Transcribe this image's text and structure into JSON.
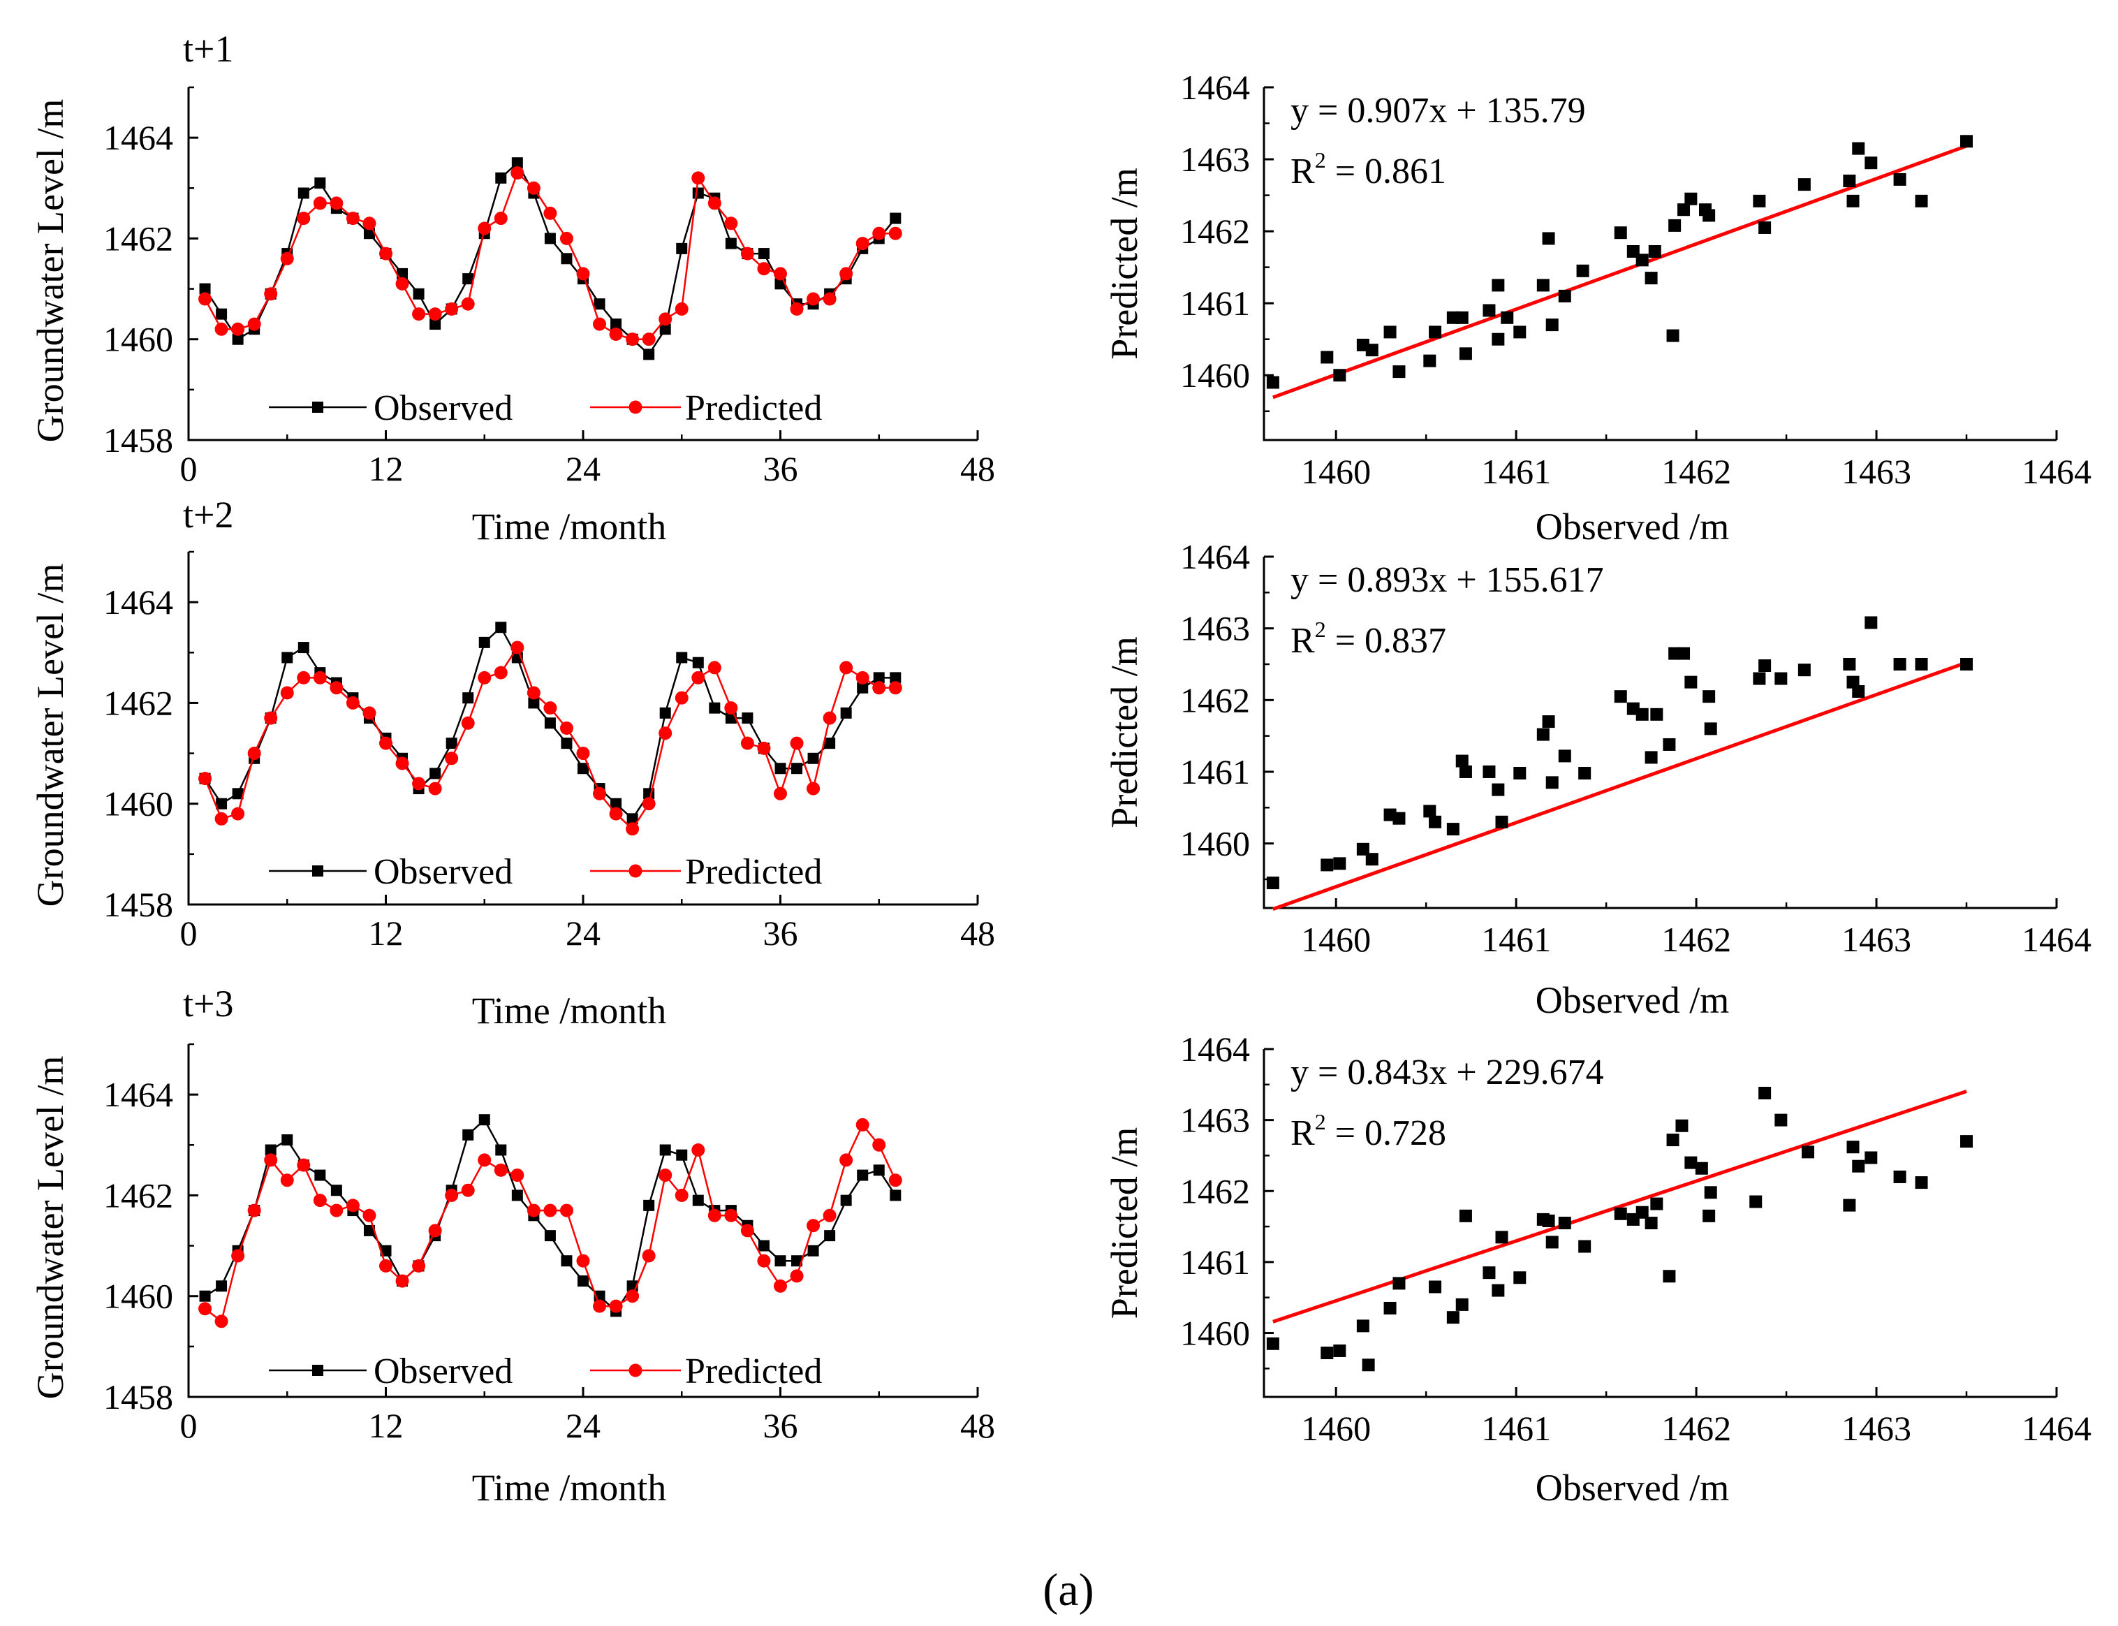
{
  "figure_caption": "(a)",
  "colors": {
    "observed": "#000000",
    "predicted": "#ff0000",
    "fit_line": "#ff0000"
  },
  "chart_data": [
    {
      "type": "line",
      "panel": "t+1",
      "xlabel": "Time /month",
      "ylabel": "Groundwater Level /m",
      "xlim": [
        0,
        48
      ],
      "ylim": [
        1458,
        1465
      ],
      "xticks": [
        "0",
        "12",
        "24",
        "36",
        "48"
      ],
      "yticks": [
        "1458",
        "1460",
        "1462",
        "1464"
      ],
      "x": [
        1,
        2,
        3,
        4,
        5,
        6,
        7,
        8,
        9,
        10,
        11,
        12,
        13,
        14,
        15,
        16,
        17,
        18,
        19,
        20,
        21,
        22,
        23,
        24,
        25,
        26,
        27,
        28,
        29,
        30,
        31,
        32,
        33,
        34,
        35,
        36,
        37,
        38,
        39,
        40,
        41,
        42,
        43
      ],
      "series": [
        {
          "name": "Observed",
          "marker": "square",
          "values": [
            1461.0,
            1460.5,
            1460.0,
            1460.2,
            1460.9,
            1461.7,
            1462.9,
            1463.1,
            1462.6,
            1462.4,
            1462.1,
            1461.7,
            1461.3,
            1460.9,
            1460.3,
            1460.6,
            1461.2,
            1462.1,
            1463.2,
            1463.5,
            1462.9,
            1462.0,
            1461.6,
            1461.2,
            1460.7,
            1460.3,
            1460.0,
            1459.7,
            1460.2,
            1461.8,
            1462.9,
            1462.8,
            1461.9,
            1461.7,
            1461.7,
            1461.1,
            1460.7,
            1460.7,
            1460.9,
            1461.2,
            1461.8,
            1462.0,
            1462.4
          ]
        },
        {
          "name": "Predicted",
          "marker": "circle",
          "values": [
            1460.8,
            1460.2,
            1460.2,
            1460.3,
            1460.9,
            1461.6,
            1462.4,
            1462.7,
            1462.7,
            1462.4,
            1462.3,
            1461.7,
            1461.1,
            1460.5,
            1460.5,
            1460.6,
            1460.7,
            1462.2,
            1462.4,
            1463.3,
            1463.0,
            1462.5,
            1462.0,
            1461.3,
            1460.3,
            1460.1,
            1460.0,
            1460.0,
            1460.4,
            1460.6,
            1463.2,
            1462.7,
            1462.3,
            1461.7,
            1461.4,
            1461.3,
            1460.6,
            1460.8,
            1460.8,
            1461.3,
            1461.9,
            1462.1,
            1462.1
          ]
        }
      ]
    },
    {
      "type": "scatter",
      "panel": "t+1",
      "xlabel": "Observed /m",
      "ylabel": "Predicted /m",
      "xlim": [
        1459.6,
        1464
      ],
      "ylim": [
        1459.1,
        1464
      ],
      "xticks": [
        "1460",
        "1461",
        "1462",
        "1463",
        "1464"
      ],
      "yticks": [
        "1460",
        "1461",
        "1462",
        "1463",
        "1464"
      ],
      "equation": "y = 0.907x + 135.79",
      "r2_label": "R",
      "r2_exp": "2",
      "r2_value": " = 0.861",
      "fit": {
        "slope": 0.907,
        "intercept": 135.79,
        "x_range": [
          1459.65,
          1463.5
        ]
      },
      "points": [
        [
          1459.65,
          1459.9
        ],
        [
          1459.95,
          1460.25
        ],
        [
          1460.02,
          1460.0
        ],
        [
          1460.15,
          1460.42
        ],
        [
          1460.2,
          1460.35
        ],
        [
          1460.3,
          1460.6
        ],
        [
          1460.35,
          1460.05
        ],
        [
          1460.52,
          1460.2
        ],
        [
          1460.55,
          1460.6
        ],
        [
          1460.65,
          1460.8
        ],
        [
          1460.7,
          1460.8
        ],
        [
          1460.72,
          1460.3
        ],
        [
          1460.85,
          1460.9
        ],
        [
          1460.9,
          1460.5
        ],
        [
          1460.9,
          1461.25
        ],
        [
          1460.95,
          1460.8
        ],
        [
          1461.02,
          1460.6
        ],
        [
          1461.15,
          1461.25
        ],
        [
          1461.18,
          1461.9
        ],
        [
          1461.2,
          1460.7
        ],
        [
          1461.27,
          1461.1
        ],
        [
          1461.37,
          1461.45
        ],
        [
          1461.58,
          1461.98
        ],
        [
          1461.65,
          1461.72
        ],
        [
          1461.7,
          1461.6
        ],
        [
          1461.75,
          1461.35
        ],
        [
          1461.77,
          1461.72
        ],
        [
          1461.87,
          1460.55
        ],
        [
          1461.88,
          1462.08
        ],
        [
          1461.93,
          1462.3
        ],
        [
          1461.97,
          1462.45
        ],
        [
          1462.05,
          1462.3
        ],
        [
          1462.07,
          1462.22
        ],
        [
          1462.35,
          1462.42
        ],
        [
          1462.38,
          1462.05
        ],
        [
          1462.6,
          1462.65
        ],
        [
          1462.85,
          1462.7
        ],
        [
          1462.87,
          1462.42
        ],
        [
          1462.9,
          1463.15
        ],
        [
          1462.97,
          1462.95
        ],
        [
          1463.13,
          1462.72
        ],
        [
          1463.25,
          1462.42
        ],
        [
          1463.5,
          1463.25
        ]
      ]
    },
    {
      "type": "line",
      "panel": "t+2",
      "xlabel": "Time /month",
      "ylabel": "Groundwater Level /m",
      "xlim": [
        0,
        48
      ],
      "ylim": [
        1458,
        1465
      ],
      "xticks": [
        "0",
        "12",
        "24",
        "36",
        "48"
      ],
      "yticks": [
        "1458",
        "1460",
        "1462",
        "1464"
      ],
      "x": [
        1,
        2,
        3,
        4,
        5,
        6,
        7,
        8,
        9,
        10,
        11,
        12,
        13,
        14,
        15,
        16,
        17,
        18,
        19,
        20,
        21,
        22,
        23,
        24,
        25,
        26,
        27,
        28,
        29,
        30,
        31,
        32,
        33,
        34,
        35,
        36,
        37,
        38,
        39,
        40,
        41,
        42,
        43
      ],
      "series": [
        {
          "name": "Observed",
          "marker": "square",
          "values": [
            1460.5,
            1460.0,
            1460.2,
            1460.9,
            1461.7,
            1462.9,
            1463.1,
            1462.6,
            1462.4,
            1462.1,
            1461.7,
            1461.3,
            1460.9,
            1460.3,
            1460.6,
            1461.2,
            1462.1,
            1463.2,
            1463.5,
            1462.9,
            1462.0,
            1461.6,
            1461.2,
            1460.7,
            1460.3,
            1460.0,
            1459.7,
            1460.2,
            1461.8,
            1462.9,
            1462.8,
            1461.9,
            1461.7,
            1461.7,
            1461.1,
            1460.7,
            1460.7,
            1460.9,
            1461.2,
            1461.8,
            1462.3,
            1462.5,
            1462.5
          ]
        },
        {
          "name": "Predicted",
          "marker": "circle",
          "values": [
            1460.5,
            1459.7,
            1459.8,
            1461.0,
            1461.7,
            1462.2,
            1462.5,
            1462.5,
            1462.3,
            1462.0,
            1461.8,
            1461.2,
            1460.8,
            1460.4,
            1460.3,
            1460.9,
            1461.6,
            1462.5,
            1462.6,
            1463.1,
            1462.2,
            1461.9,
            1461.5,
            1461.0,
            1460.2,
            1459.8,
            1459.5,
            1460.0,
            1461.4,
            1462.1,
            1462.5,
            1462.7,
            1461.9,
            1461.2,
            1461.1,
            1460.2,
            1461.2,
            1460.3,
            1461.7,
            1462.7,
            1462.5,
            1462.3,
            1462.3
          ]
        }
      ]
    },
    {
      "type": "scatter",
      "panel": "t+2",
      "xlabel": "Observed /m",
      "ylabel": "Predicted /m",
      "xlim": [
        1459.6,
        1464
      ],
      "ylim": [
        1459.1,
        1464
      ],
      "xticks": [
        "1460",
        "1461",
        "1462",
        "1463",
        "1464"
      ],
      "yticks": [
        "1460",
        "1461",
        "1462",
        "1463",
        "1464"
      ],
      "equation": "y = 0.893x + 155.617",
      "r2_label": "R",
      "r2_exp": "2",
      "r2_value": " = 0.837",
      "fit": {
        "slope": 0.893,
        "intercept": 155.617,
        "x_range": [
          1459.65,
          1463.5
        ]
      },
      "points": [
        [
          1459.65,
          1459.45
        ],
        [
          1459.95,
          1459.7
        ],
        [
          1460.02,
          1459.72
        ],
        [
          1460.15,
          1459.92
        ],
        [
          1460.2,
          1459.78
        ],
        [
          1460.3,
          1460.4
        ],
        [
          1460.35,
          1460.35
        ],
        [
          1460.52,
          1460.45
        ],
        [
          1460.55,
          1460.3
        ],
        [
          1460.65,
          1460.2
        ],
        [
          1460.7,
          1461.15
        ],
        [
          1460.72,
          1461.0
        ],
        [
          1460.85,
          1461.0
        ],
        [
          1460.9,
          1460.75
        ],
        [
          1460.92,
          1460.3
        ],
        [
          1461.02,
          1460.98
        ],
        [
          1461.15,
          1461.52
        ],
        [
          1461.18,
          1461.7
        ],
        [
          1461.2,
          1460.85
        ],
        [
          1461.27,
          1461.22
        ],
        [
          1461.38,
          1460.98
        ],
        [
          1461.58,
          1462.05
        ],
        [
          1461.65,
          1461.88
        ],
        [
          1461.7,
          1461.8
        ],
        [
          1461.75,
          1461.2
        ],
        [
          1461.78,
          1461.8
        ],
        [
          1461.85,
          1461.38
        ],
        [
          1461.88,
          1462.65
        ],
        [
          1461.93,
          1462.65
        ],
        [
          1461.97,
          1462.25
        ],
        [
          1462.07,
          1462.05
        ],
        [
          1462.08,
          1461.6
        ],
        [
          1462.35,
          1462.3
        ],
        [
          1462.38,
          1462.48
        ],
        [
          1462.47,
          1462.3
        ],
        [
          1462.6,
          1462.42
        ],
        [
          1462.85,
          1462.5
        ],
        [
          1462.87,
          1462.25
        ],
        [
          1462.9,
          1462.12
        ],
        [
          1462.97,
          1463.08
        ],
        [
          1463.13,
          1462.5
        ],
        [
          1463.25,
          1462.5
        ],
        [
          1463.5,
          1462.5
        ]
      ]
    },
    {
      "type": "line",
      "panel": "t+3",
      "xlabel": "Time /month",
      "ylabel": "Groundwater Level /m",
      "xlim": [
        0,
        48
      ],
      "ylim": [
        1458,
        1465
      ],
      "xticks": [
        "0",
        "12",
        "24",
        "36",
        "48"
      ],
      "yticks": [
        "1458",
        "1460",
        "1462",
        "1464"
      ],
      "x": [
        1,
        2,
        3,
        4,
        5,
        6,
        7,
        8,
        9,
        10,
        11,
        12,
        13,
        14,
        15,
        16,
        17,
        18,
        19,
        20,
        21,
        22,
        23,
        24,
        25,
        26,
        27,
        28,
        29,
        30,
        31,
        32,
        33,
        34,
        35,
        36,
        37,
        38,
        39,
        40,
        41,
        42,
        43
      ],
      "series": [
        {
          "name": "Observed",
          "marker": "square",
          "values": [
            1460.0,
            1460.2,
            1460.9,
            1461.7,
            1462.9,
            1463.1,
            1462.6,
            1462.4,
            1462.1,
            1461.7,
            1461.3,
            1460.9,
            1460.3,
            1460.6,
            1461.2,
            1462.1,
            1463.2,
            1463.5,
            1462.9,
            1462.0,
            1461.6,
            1461.2,
            1460.7,
            1460.3,
            1460.0,
            1459.7,
            1460.2,
            1461.8,
            1462.9,
            1462.8,
            1461.9,
            1461.7,
            1461.7,
            1461.4,
            1461.0,
            1460.7,
            1460.7,
            1460.9,
            1461.2,
            1461.9,
            1462.4,
            1462.5,
            1462.0
          ]
        },
        {
          "name": "Predicted",
          "marker": "circle",
          "values": [
            1459.75,
            1459.5,
            1460.8,
            1461.7,
            1462.7,
            1462.3,
            1462.6,
            1461.9,
            1461.7,
            1461.8,
            1461.6,
            1460.6,
            1460.3,
            1460.6,
            1461.3,
            1462.0,
            1462.1,
            1462.7,
            1462.5,
            1462.4,
            1461.7,
            1461.7,
            1461.7,
            1460.7,
            1459.8,
            1459.8,
            1460.0,
            1460.8,
            1462.4,
            1462.0,
            1462.9,
            1461.6,
            1461.6,
            1461.3,
            1460.7,
            1460.2,
            1460.4,
            1461.4,
            1461.6,
            1462.7,
            1463.4,
            1463.0,
            1462.3
          ]
        }
      ]
    },
    {
      "type": "scatter",
      "panel": "t+3",
      "xlabel": "Observed /m",
      "ylabel": "Predicted /m",
      "xlim": [
        1459.6,
        1464
      ],
      "ylim": [
        1459.1,
        1464
      ],
      "xticks": [
        "1460",
        "1461",
        "1462",
        "1463",
        "1464"
      ],
      "yticks": [
        "1460",
        "1461",
        "1462",
        "1463",
        "1464"
      ],
      "equation": "y = 0.843x + 229.674",
      "r2_label": "R",
      "r2_exp": "2",
      "r2_value": " = 0.728",
      "fit": {
        "slope": 0.843,
        "intercept": 229.674,
        "x_range": [
          1459.65,
          1463.5
        ]
      },
      "points": [
        [
          1459.65,
          1459.85
        ],
        [
          1459.95,
          1459.72
        ],
        [
          1460.02,
          1459.75
        ],
        [
          1460.15,
          1460.1
        ],
        [
          1460.18,
          1459.55
        ],
        [
          1460.3,
          1460.35
        ],
        [
          1460.35,
          1460.7
        ],
        [
          1460.55,
          1460.65
        ],
        [
          1460.65,
          1460.22
        ],
        [
          1460.7,
          1460.4
        ],
        [
          1460.72,
          1461.65
        ],
        [
          1460.85,
          1460.85
        ],
        [
          1460.9,
          1460.6
        ],
        [
          1460.92,
          1461.35
        ],
        [
          1461.02,
          1460.78
        ],
        [
          1461.15,
          1461.6
        ],
        [
          1461.18,
          1461.58
        ],
        [
          1461.2,
          1461.28
        ],
        [
          1461.27,
          1461.55
        ],
        [
          1461.38,
          1461.22
        ],
        [
          1461.58,
          1461.68
        ],
        [
          1461.65,
          1461.6
        ],
        [
          1461.7,
          1461.7
        ],
        [
          1461.75,
          1461.55
        ],
        [
          1461.78,
          1461.82
        ],
        [
          1461.85,
          1460.8
        ],
        [
          1461.87,
          1462.72
        ],
        [
          1461.92,
          1462.92
        ],
        [
          1461.97,
          1462.4
        ],
        [
          1462.03,
          1462.32
        ],
        [
          1462.07,
          1461.65
        ],
        [
          1462.08,
          1461.98
        ],
        [
          1462.33,
          1461.85
        ],
        [
          1462.38,
          1463.38
        ],
        [
          1462.47,
          1463.0
        ],
        [
          1462.62,
          1462.55
        ],
        [
          1462.85,
          1461.8
        ],
        [
          1462.87,
          1462.62
        ],
        [
          1462.9,
          1462.35
        ],
        [
          1462.97,
          1462.47
        ],
        [
          1463.13,
          1462.2
        ],
        [
          1463.25,
          1462.12
        ],
        [
          1463.5,
          1462.7
        ]
      ]
    }
  ]
}
